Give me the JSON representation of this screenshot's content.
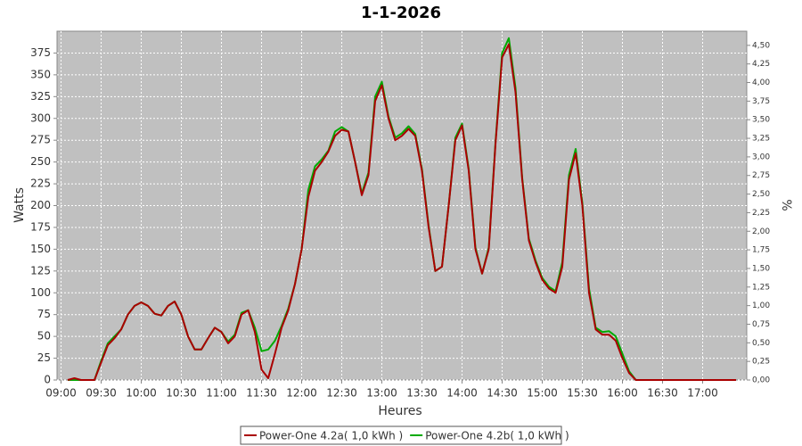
{
  "chart_data": {
    "type": "line",
    "title": "1-1-2026",
    "xlabel": "Heures",
    "ylabel": "Watts",
    "y2label": "%",
    "x": [
      "09:05",
      "09:10",
      "09:15",
      "09:25",
      "09:30",
      "09:35",
      "09:40",
      "09:45",
      "09:50",
      "09:55",
      "10:00",
      "10:05",
      "10:10",
      "10:15",
      "10:20",
      "10:25",
      "10:30",
      "10:35",
      "10:40",
      "10:45",
      "10:50",
      "10:55",
      "11:00",
      "11:05",
      "11:10",
      "11:15",
      "11:20",
      "11:25",
      "11:30",
      "11:35",
      "11:40",
      "11:45",
      "11:50",
      "11:55",
      "12:00",
      "12:05",
      "12:10",
      "12:15",
      "12:20",
      "12:25",
      "12:30",
      "12:35",
      "12:40",
      "12:45",
      "12:50",
      "12:55",
      "13:00",
      "13:05",
      "13:10",
      "13:15",
      "13:20",
      "13:25",
      "13:30",
      "13:35",
      "13:40",
      "13:45",
      "13:50",
      "13:55",
      "14:00",
      "14:05",
      "14:10",
      "14:15",
      "14:20",
      "14:25",
      "14:30",
      "14:35",
      "14:40",
      "14:45",
      "14:50",
      "14:55",
      "15:00",
      "15:05",
      "15:10",
      "15:15",
      "15:20",
      "15:25",
      "15:30",
      "15:35",
      "15:40",
      "15:45",
      "15:50",
      "15:55",
      "16:00",
      "16:05",
      "16:10",
      "17:25"
    ],
    "series": [
      {
        "name": "Power-One 4.2a( 1,0 kWh )",
        "color": "#aa0000",
        "values": [
          0,
          2,
          0,
          0,
          20,
          40,
          48,
          58,
          75,
          85,
          89,
          85,
          76,
          74,
          85,
          90,
          75,
          50,
          35,
          35,
          48,
          60,
          55,
          42,
          50,
          75,
          80,
          55,
          12,
          2,
          30,
          60,
          80,
          110,
          150,
          210,
          240,
          250,
          262,
          280,
          287,
          285,
          250,
          212,
          235,
          320,
          338,
          300,
          275,
          280,
          288,
          280,
          240,
          175,
          125,
          130,
          200,
          275,
          292,
          240,
          150,
          122,
          150,
          270,
          370,
          385,
          330,
          230,
          160,
          135,
          115,
          105,
          100,
          130,
          230,
          260,
          200,
          100,
          58,
          52,
          52,
          45,
          25,
          8,
          0,
          0
        ]
      },
      {
        "name": "Power-One 4.2b( 1,0 kWh )",
        "color": "#00aa00",
        "values": [
          0,
          0,
          0,
          0,
          22,
          42,
          50,
          58,
          75,
          85,
          89,
          85,
          76,
          74,
          85,
          90,
          75,
          50,
          35,
          35,
          48,
          60,
          55,
          44,
          52,
          77,
          80,
          60,
          33,
          35,
          45,
          62,
          82,
          110,
          150,
          218,
          245,
          253,
          263,
          285,
          290,
          285,
          250,
          214,
          238,
          325,
          342,
          302,
          278,
          283,
          291,
          282,
          242,
          177,
          125,
          130,
          200,
          278,
          294,
          242,
          152,
          122,
          152,
          272,
          375,
          392,
          335,
          232,
          162,
          137,
          117,
          107,
          102,
          135,
          235,
          265,
          203,
          105,
          60,
          55,
          56,
          50,
          30,
          10,
          0,
          0
        ]
      }
    ],
    "xlim": [
      "08:57",
      "17:33"
    ],
    "xticks": [
      "09:00",
      "09:30",
      "10:00",
      "10:30",
      "11:00",
      "11:30",
      "12:00",
      "12:30",
      "13:00",
      "13:30",
      "14:00",
      "14:30",
      "15:00",
      "15:30",
      "16:00",
      "16:30",
      "17:00"
    ],
    "ylim": [
      0,
      400
    ],
    "yticks": [
      0,
      25,
      50,
      75,
      100,
      125,
      150,
      175,
      200,
      225,
      250,
      275,
      300,
      325,
      350,
      375
    ],
    "y2lim": [
      0,
      4.69
    ],
    "y2ticks": [
      {
        "value": 0,
        "label": "0,00"
      },
      {
        "value": 0.25,
        "label": "0,25"
      },
      {
        "value": 0.5,
        "label": "0,50"
      },
      {
        "value": 0.75,
        "label": "0,75"
      },
      {
        "value": 1,
        "label": "1,00"
      },
      {
        "value": 1.25,
        "label": "1,25"
      },
      {
        "value": 1.5,
        "label": "1,50"
      },
      {
        "value": 1.75,
        "label": "1,75"
      },
      {
        "value": 2,
        "label": "2,00"
      },
      {
        "value": 2.25,
        "label": "2,25"
      },
      {
        "value": 2.5,
        "label": "2,50"
      },
      {
        "value": 2.75,
        "label": "2,75"
      },
      {
        "value": 3,
        "label": "3,00"
      },
      {
        "value": 3.25,
        "label": "3,25"
      },
      {
        "value": 3.5,
        "label": "3,50"
      },
      {
        "value": 3.75,
        "label": "3,75"
      },
      {
        "value": 4,
        "label": "4,00"
      },
      {
        "value": 4.25,
        "label": "4,25"
      },
      {
        "value": 4.5,
        "label": "4,50"
      }
    ],
    "grid": true,
    "legend": "bottom"
  }
}
